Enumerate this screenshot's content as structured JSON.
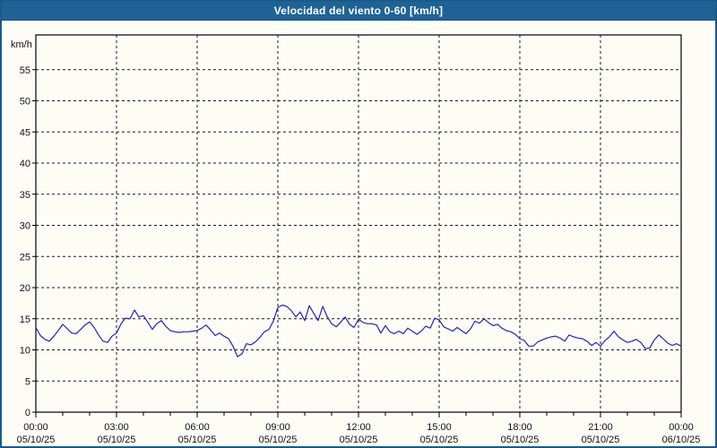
{
  "window": {
    "title": "Velocidad del viento 0-60 [km/h]"
  },
  "colors": {
    "titlebar_bg": "#1f6396",
    "frame_border": "#1a5a87",
    "background": "#fdfdf6",
    "axis": "#000000",
    "grid": "#1a1a1a",
    "tick_text": "#111111",
    "title_text": "#ffffff",
    "line": "#2222c8"
  },
  "chart_data": {
    "type": "line",
    "title": "Velocidad del viento 0-60 [km/h]",
    "xlabel": "",
    "ylabel": "km/h",
    "ylim": [
      0,
      60
    ],
    "ytick_step": 5,
    "ytick_labels": [
      "0",
      "5",
      "10",
      "15",
      "20",
      "25",
      "30",
      "35",
      "40",
      "45",
      "50",
      "55"
    ],
    "xlim_hours": [
      0,
      24
    ],
    "xtick_major_step_hours": 3,
    "xtick_minor_step_hours": 1,
    "grid": "dashed",
    "legend": "none",
    "x_labels": [
      {
        "time": "00:00",
        "date": "05/10/25"
      },
      {
        "time": "03:00",
        "date": "05/10/25"
      },
      {
        "time": "06:00",
        "date": "05/10/25"
      },
      {
        "time": "09:00",
        "date": "05/10/25"
      },
      {
        "time": "12:00",
        "date": "05/10/25"
      },
      {
        "time": "15:00",
        "date": "05/10/25"
      },
      {
        "time": "18:00",
        "date": "05/10/25"
      },
      {
        "time": "21:00",
        "date": "05/10/25"
      },
      {
        "time": "00:00",
        "date": "06/10/25"
      }
    ],
    "series": [
      {
        "name": "Velocidad del viento",
        "color": "#2222c8",
        "units": "km/h",
        "points": [
          [
            0.0,
            13.6
          ],
          [
            0.17,
            12.3
          ],
          [
            0.33,
            11.7
          ],
          [
            0.5,
            11.4
          ],
          [
            0.67,
            12.2
          ],
          [
            0.83,
            13.1
          ],
          [
            1.0,
            14.1
          ],
          [
            1.17,
            13.4
          ],
          [
            1.33,
            12.7
          ],
          [
            1.5,
            12.6
          ],
          [
            1.67,
            13.3
          ],
          [
            1.83,
            14.0
          ],
          [
            2.0,
            14.5
          ],
          [
            2.17,
            13.6
          ],
          [
            2.33,
            12.4
          ],
          [
            2.5,
            11.4
          ],
          [
            2.67,
            11.2
          ],
          [
            2.83,
            12.2
          ],
          [
            3.0,
            12.7
          ],
          [
            3.17,
            14.2
          ],
          [
            3.33,
            15.1
          ],
          [
            3.5,
            15.0
          ],
          [
            3.67,
            16.4
          ],
          [
            3.83,
            15.3
          ],
          [
            4.0,
            15.5
          ],
          [
            4.17,
            14.4
          ],
          [
            4.33,
            13.3
          ],
          [
            4.5,
            14.2
          ],
          [
            4.67,
            14.7
          ],
          [
            4.83,
            13.8
          ],
          [
            5.0,
            13.1
          ],
          [
            5.17,
            12.9
          ],
          [
            5.33,
            12.8
          ],
          [
            5.5,
            12.9
          ],
          [
            5.67,
            12.9
          ],
          [
            5.83,
            13.0
          ],
          [
            6.0,
            13.1
          ],
          [
            6.17,
            13.5
          ],
          [
            6.33,
            14.0
          ],
          [
            6.5,
            13.2
          ],
          [
            6.67,
            12.3
          ],
          [
            6.83,
            12.7
          ],
          [
            7.0,
            12.2
          ],
          [
            7.17,
            11.8
          ],
          [
            7.33,
            10.6
          ],
          [
            7.5,
            8.9
          ],
          [
            7.67,
            9.4
          ],
          [
            7.83,
            11.0
          ],
          [
            8.0,
            10.8
          ],
          [
            8.17,
            11.3
          ],
          [
            8.33,
            12.0
          ],
          [
            8.5,
            12.9
          ],
          [
            8.67,
            13.3
          ],
          [
            8.83,
            14.6
          ],
          [
            9.0,
            16.8
          ],
          [
            9.17,
            17.2
          ],
          [
            9.33,
            17.0
          ],
          [
            9.5,
            16.3
          ],
          [
            9.67,
            15.3
          ],
          [
            9.83,
            16.1
          ],
          [
            10.0,
            14.7
          ],
          [
            10.17,
            17.1
          ],
          [
            10.33,
            15.9
          ],
          [
            10.5,
            14.7
          ],
          [
            10.67,
            17.0
          ],
          [
            10.83,
            15.4
          ],
          [
            11.0,
            14.2
          ],
          [
            11.17,
            13.7
          ],
          [
            11.33,
            14.4
          ],
          [
            11.5,
            15.3
          ],
          [
            11.67,
            14.1
          ],
          [
            11.83,
            13.6
          ],
          [
            12.0,
            14.9
          ],
          [
            12.17,
            14.4
          ],
          [
            12.33,
            14.2
          ],
          [
            12.5,
            14.2
          ],
          [
            12.67,
            14.0
          ],
          [
            12.83,
            12.7
          ],
          [
            13.0,
            13.9
          ],
          [
            13.17,
            12.9
          ],
          [
            13.33,
            12.6
          ],
          [
            13.5,
            13.0
          ],
          [
            13.67,
            12.6
          ],
          [
            13.83,
            13.5
          ],
          [
            14.0,
            13.0
          ],
          [
            14.17,
            12.5
          ],
          [
            14.33,
            13.0
          ],
          [
            14.5,
            13.8
          ],
          [
            14.67,
            13.5
          ],
          [
            14.83,
            15.1
          ],
          [
            15.0,
            14.8
          ],
          [
            15.17,
            13.7
          ],
          [
            15.33,
            13.4
          ],
          [
            15.5,
            13.0
          ],
          [
            15.67,
            13.6
          ],
          [
            15.83,
            13.1
          ],
          [
            16.0,
            12.6
          ],
          [
            16.17,
            13.4
          ],
          [
            16.33,
            14.6
          ],
          [
            16.5,
            14.3
          ],
          [
            16.67,
            15.0
          ],
          [
            16.83,
            14.4
          ],
          [
            17.0,
            13.9
          ],
          [
            17.17,
            14.1
          ],
          [
            17.33,
            13.5
          ],
          [
            17.5,
            13.1
          ],
          [
            17.67,
            12.9
          ],
          [
            17.83,
            12.5
          ],
          [
            18.0,
            11.8
          ],
          [
            18.17,
            11.5
          ],
          [
            18.33,
            10.6
          ],
          [
            18.5,
            10.6
          ],
          [
            18.67,
            11.3
          ],
          [
            18.83,
            11.6
          ],
          [
            19.0,
            11.9
          ],
          [
            19.17,
            12.1
          ],
          [
            19.33,
            12.2
          ],
          [
            19.5,
            11.9
          ],
          [
            19.67,
            11.4
          ],
          [
            19.83,
            12.4
          ],
          [
            20.0,
            12.1
          ],
          [
            20.17,
            11.9
          ],
          [
            20.33,
            11.8
          ],
          [
            20.5,
            11.4
          ],
          [
            20.67,
            10.7
          ],
          [
            20.83,
            11.2
          ],
          [
            21.0,
            10.6
          ],
          [
            21.17,
            11.5
          ],
          [
            21.33,
            12.1
          ],
          [
            21.5,
            13.0
          ],
          [
            21.67,
            12.1
          ],
          [
            21.83,
            11.6
          ],
          [
            22.0,
            11.2
          ],
          [
            22.17,
            11.4
          ],
          [
            22.33,
            11.7
          ],
          [
            22.5,
            11.2
          ],
          [
            22.67,
            10.2
          ],
          [
            22.83,
            10.3
          ],
          [
            23.0,
            11.6
          ],
          [
            23.17,
            12.4
          ],
          [
            23.33,
            11.8
          ],
          [
            23.5,
            11.1
          ],
          [
            23.67,
            10.7
          ],
          [
            23.83,
            11.0
          ],
          [
            24.0,
            10.6
          ]
        ]
      }
    ]
  }
}
